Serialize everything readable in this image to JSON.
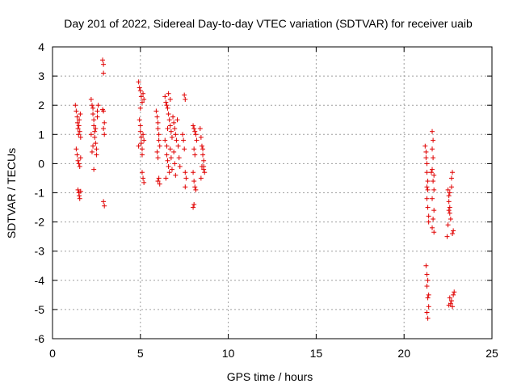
{
  "chart_data": {
    "type": "scatter",
    "title": "Day 201 of 2022, Sidereal Day-to-day VTEC variation (SDTVAR) for receiver uaib",
    "xlabel": "GPS time / hours",
    "ylabel": "SDTVAR / TECUs",
    "xlim": [
      0,
      25
    ],
    "ylim": [
      -6,
      4
    ],
    "xticks": [
      0,
      5,
      10,
      15,
      20,
      25
    ],
    "yticks": [
      -6,
      -5,
      -4,
      -3,
      -2,
      -1,
      0,
      1,
      2,
      3,
      4
    ],
    "grid": true,
    "marker": "plus",
    "color": "#e00000",
    "series": [
      {
        "name": "SDTVAR",
        "points": [
          [
            1.3,
            2.0
          ],
          [
            1.35,
            1.8
          ],
          [
            1.4,
            1.6
          ],
          [
            1.42,
            1.4
          ],
          [
            1.45,
            1.2
          ],
          [
            1.48,
            1.0
          ],
          [
            1.5,
            1.3
          ],
          [
            1.52,
            1.5
          ],
          [
            1.55,
            1.1
          ],
          [
            1.58,
            1.7
          ],
          [
            1.6,
            0.9
          ],
          [
            1.35,
            0.5
          ],
          [
            1.4,
            0.3
          ],
          [
            1.45,
            0.1
          ],
          [
            1.5,
            0.0
          ],
          [
            1.55,
            -0.1
          ],
          [
            1.6,
            0.2
          ],
          [
            1.45,
            -0.9
          ],
          [
            1.5,
            -1.0
          ],
          [
            1.52,
            -1.1
          ],
          [
            1.55,
            -1.2
          ],
          [
            1.6,
            -0.95
          ],
          [
            2.2,
            2.2
          ],
          [
            2.25,
            2.0
          ],
          [
            2.3,
            1.9
          ],
          [
            2.3,
            1.7
          ],
          [
            2.35,
            1.5
          ],
          [
            2.35,
            1.3
          ],
          [
            2.4,
            1.1
          ],
          [
            2.4,
            0.9
          ],
          [
            2.45,
            1.2
          ],
          [
            2.45,
            0.7
          ],
          [
            2.5,
            0.5
          ],
          [
            2.5,
            0.3
          ],
          [
            2.55,
            1.8
          ],
          [
            2.55,
            1.6
          ],
          [
            2.3,
            0.6
          ],
          [
            2.25,
            0.4
          ],
          [
            2.35,
            -0.2
          ],
          [
            2.6,
            2.0
          ],
          [
            2.2,
            1.0
          ],
          [
            2.85,
            3.55
          ],
          [
            2.9,
            3.4
          ],
          [
            2.9,
            3.1
          ],
          [
            2.85,
            1.85
          ],
          [
            2.9,
            1.8
          ],
          [
            2.95,
            1.4
          ],
          [
            2.9,
            1.2
          ],
          [
            2.95,
            1.0
          ],
          [
            2.9,
            -1.3
          ],
          [
            2.95,
            -1.45
          ],
          [
            4.9,
            2.8
          ],
          [
            4.95,
            2.6
          ],
          [
            5.0,
            2.5
          ],
          [
            5.05,
            2.3
          ],
          [
            5.1,
            2.1
          ],
          [
            5.15,
            2.4
          ],
          [
            5.2,
            2.2
          ],
          [
            4.95,
            1.5
          ],
          [
            5.0,
            1.3
          ],
          [
            5.0,
            1.1
          ],
          [
            5.05,
            0.9
          ],
          [
            5.05,
            0.7
          ],
          [
            5.1,
            0.5
          ],
          [
            5.1,
            0.3
          ],
          [
            5.15,
            1.0
          ],
          [
            5.2,
            0.8
          ],
          [
            4.9,
            0.6
          ],
          [
            5.1,
            -0.3
          ],
          [
            5.15,
            -0.5
          ],
          [
            5.2,
            -0.65
          ],
          [
            5.0,
            1.9
          ],
          [
            5.9,
            1.8
          ],
          [
            5.95,
            1.6
          ],
          [
            6.0,
            1.4
          ],
          [
            6.0,
            1.2
          ],
          [
            6.05,
            1.0
          ],
          [
            6.05,
            0.8
          ],
          [
            6.1,
            0.6
          ],
          [
            5.95,
            0.4
          ],
          [
            6.0,
            0.2
          ],
          [
            6.05,
            -0.5
          ],
          [
            6.1,
            -0.7
          ],
          [
            6.0,
            -0.6
          ],
          [
            6.4,
            2.3
          ],
          [
            6.45,
            2.1
          ],
          [
            6.5,
            2.0
          ],
          [
            6.55,
            1.9
          ],
          [
            6.6,
            1.7
          ],
          [
            6.65,
            1.5
          ],
          [
            6.7,
            1.3
          ],
          [
            6.75,
            1.1
          ],
          [
            6.8,
            0.9
          ],
          [
            6.5,
            0.3
          ],
          [
            6.55,
            0.1
          ],
          [
            6.6,
            -0.1
          ],
          [
            6.65,
            -0.3
          ],
          [
            6.7,
            0.5
          ],
          [
            6.75,
            0.2
          ],
          [
            6.8,
            -0.2
          ],
          [
            6.85,
            1.6
          ],
          [
            6.9,
            1.4
          ],
          [
            6.95,
            1.2
          ],
          [
            7.0,
            1.0
          ],
          [
            7.05,
            0.8
          ],
          [
            6.9,
            0.4
          ],
          [
            6.95,
            0.0
          ],
          [
            7.0,
            -0.4
          ],
          [
            6.45,
            -0.5
          ],
          [
            6.5,
            0.6
          ],
          [
            6.6,
            2.4
          ],
          [
            6.7,
            2.2
          ],
          [
            7.1,
            1.5
          ],
          [
            7.15,
            0.6
          ],
          [
            7.2,
            0.2
          ],
          [
            7.25,
            -0.1
          ],
          [
            6.4,
            0.8
          ],
          [
            6.55,
            1.2
          ],
          [
            7.5,
            2.35
          ],
          [
            7.55,
            2.2
          ],
          [
            7.4,
            1.0
          ],
          [
            7.45,
            0.8
          ],
          [
            7.5,
            0.5
          ],
          [
            7.55,
            -0.3
          ],
          [
            7.6,
            -0.5
          ],
          [
            7.55,
            -0.8
          ],
          [
            8.0,
            1.3
          ],
          [
            8.05,
            1.2
          ],
          [
            8.1,
            1.1
          ],
          [
            8.15,
            1.0
          ],
          [
            8.2,
            0.8
          ],
          [
            8.05,
            0.5
          ],
          [
            8.1,
            0.3
          ],
          [
            8.0,
            -0.3
          ],
          [
            8.05,
            -0.6
          ],
          [
            8.1,
            -0.8
          ],
          [
            8.0,
            -1.5
          ],
          [
            8.05,
            -1.4
          ],
          [
            8.15,
            -0.9
          ],
          [
            8.4,
            1.2
          ],
          [
            8.45,
            0.9
          ],
          [
            8.5,
            0.6
          ],
          [
            8.55,
            0.3
          ],
          [
            8.6,
            0.1
          ],
          [
            8.6,
            -0.2
          ],
          [
            8.65,
            -0.3
          ],
          [
            8.5,
            -0.1
          ],
          [
            8.45,
            -0.5
          ],
          [
            8.55,
            0.5
          ],
          [
            8.6,
            -0.1
          ],
          [
            21.2,
            0.6
          ],
          [
            21.25,
            0.4
          ],
          [
            21.25,
            0.2
          ],
          [
            21.3,
            0.0
          ],
          [
            21.3,
            -0.3
          ],
          [
            21.35,
            -0.6
          ],
          [
            21.35,
            -0.9
          ],
          [
            21.3,
            -1.2
          ],
          [
            21.35,
            -1.5
          ],
          [
            21.4,
            -1.8
          ],
          [
            21.4,
            -2.0
          ],
          [
            21.3,
            -0.8
          ],
          [
            21.25,
            -3.5
          ],
          [
            21.3,
            -3.8
          ],
          [
            21.35,
            -4.0
          ],
          [
            21.3,
            -4.2
          ],
          [
            21.4,
            -4.5
          ],
          [
            21.35,
            -4.6
          ],
          [
            21.4,
            -4.9
          ],
          [
            21.3,
            -5.1
          ],
          [
            21.35,
            -5.3
          ],
          [
            21.6,
            1.1
          ],
          [
            21.65,
            0.8
          ],
          [
            21.6,
            0.5
          ],
          [
            21.65,
            0.2
          ],
          [
            21.6,
            -0.2
          ],
          [
            21.7,
            -0.4
          ],
          [
            21.65,
            -0.6
          ],
          [
            21.7,
            -0.9
          ],
          [
            21.6,
            -1.2
          ],
          [
            21.7,
            -1.6
          ],
          [
            21.65,
            -1.9
          ],
          [
            21.6,
            -2.2
          ],
          [
            21.7,
            -2.35
          ],
          [
            21.55,
            -0.3
          ],
          [
            22.5,
            -0.9
          ],
          [
            22.55,
            -1.1
          ],
          [
            22.55,
            -1.3
          ],
          [
            22.6,
            -1.5
          ],
          [
            22.6,
            -1.7
          ],
          [
            22.65,
            -1.9
          ],
          [
            22.5,
            -2.1
          ],
          [
            22.45,
            -2.5
          ],
          [
            22.6,
            -1.0
          ],
          [
            22.7,
            -0.8
          ],
          [
            22.7,
            -0.5
          ],
          [
            22.75,
            -0.3
          ],
          [
            22.8,
            -2.3
          ],
          [
            22.75,
            -2.4
          ],
          [
            22.55,
            -1.6
          ],
          [
            22.6,
            -4.6
          ],
          [
            22.65,
            -4.8
          ],
          [
            22.7,
            -4.7
          ],
          [
            22.75,
            -4.9
          ],
          [
            22.8,
            -4.5
          ],
          [
            22.55,
            -4.85
          ],
          [
            22.85,
            -4.4
          ]
        ]
      }
    ]
  }
}
